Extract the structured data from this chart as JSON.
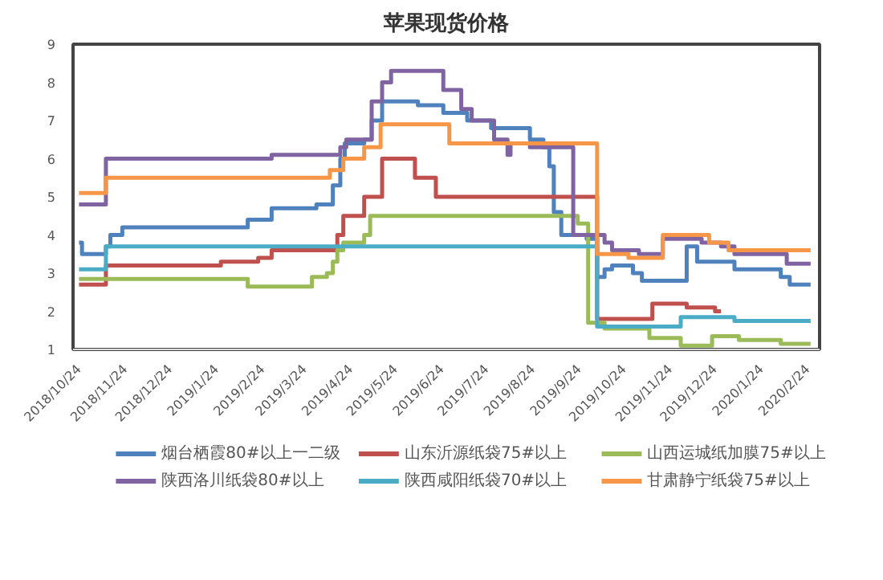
{
  "chart_data": {
    "type": "step",
    "title": "苹果现货价格",
    "xlim": [
      "2018-10-20",
      "2020-03-03"
    ],
    "ylim": [
      1,
      9
    ],
    "yticks": [
      1,
      2,
      3,
      4,
      5,
      6,
      7,
      8,
      9
    ],
    "xticks": [
      {
        "value": "2018-10-24",
        "label": "2018/10/24"
      },
      {
        "value": "2018-11-24",
        "label": "2018/11/24"
      },
      {
        "value": "2018-12-24",
        "label": "2018/12/24"
      },
      {
        "value": "2019-01-24",
        "label": "2019/1/24"
      },
      {
        "value": "2019-02-24",
        "label": "2019/2/24"
      },
      {
        "value": "2019-03-24",
        "label": "2019/3/24"
      },
      {
        "value": "2019-04-24",
        "label": "2019/4/24"
      },
      {
        "value": "2019-05-24",
        "label": "2019/5/24"
      },
      {
        "value": "2019-06-24",
        "label": "2019/6/24"
      },
      {
        "value": "2019-07-24",
        "label": "2019/7/24"
      },
      {
        "value": "2019-08-24",
        "label": "2019/8/24"
      },
      {
        "value": "2019-09-24",
        "label": "2019/9/24"
      },
      {
        "value": "2019-10-24",
        "label": "2019/10/24"
      },
      {
        "value": "2019-11-24",
        "label": "2019/11/24"
      },
      {
        "value": "2019-12-24",
        "label": "2019/12/24"
      },
      {
        "value": "2020-01-24",
        "label": "2020/1/24"
      },
      {
        "value": "2020-02-24",
        "label": "2020/2/24"
      }
    ],
    "grid": false,
    "legend": "bottom",
    "series": [
      {
        "name": "烟台栖霞80#以上一二级",
        "color": "#4f81bd",
        "x": [
          "2018-10-24",
          "2018-10-26",
          "2018-11-11",
          "2018-11-14",
          "2018-11-22",
          "2019-02-14",
          "2019-03-02",
          "2019-04-01",
          "2019-04-12",
          "2019-04-17",
          "2019-04-20",
          "2019-05-03",
          "2019-05-08",
          "2019-05-15",
          "2019-06-08",
          "2019-06-25",
          "2019-07-11",
          "2019-07-27",
          "2019-08-22",
          "2019-08-31",
          "2019-09-04",
          "2019-09-07",
          "2019-09-12",
          "2019-09-29",
          "2019-10-06",
          "2019-10-11",
          "2019-10-16",
          "2019-10-30",
          "2019-11-05",
          "2019-12-05",
          "2019-12-12",
          "2020-01-06",
          "2020-02-06",
          "2020-02-12",
          "2020-02-26"
        ],
        "values": [
          3.8,
          3.5,
          3.7,
          4.0,
          4.2,
          4.4,
          4.7,
          4.8,
          5.3,
          6.0,
          6.4,
          6.5,
          7.0,
          7.5,
          7.4,
          7.2,
          7.0,
          6.8,
          6.5,
          6.3,
          5.8,
          4.6,
          4.0,
          3.9,
          2.9,
          3.1,
          3.2,
          3.0,
          2.8,
          3.7,
          3.3,
          3.1,
          2.9,
          2.7,
          2.7
        ]
      },
      {
        "name": "山东沂源纸袋75#以上",
        "color": "#c0504d",
        "x": [
          "2018-10-24",
          "2018-11-11",
          "2019-01-27",
          "2019-02-21",
          "2019-03-02",
          "2019-04-15",
          "2019-04-19",
          "2019-05-03",
          "2019-05-15",
          "2019-06-06",
          "2019-06-20",
          "2019-10-06",
          "2019-11-12",
          "2019-12-05",
          "2019-12-24",
          "2019-12-28"
        ],
        "values": [
          2.7,
          3.2,
          3.3,
          3.4,
          3.6,
          4.0,
          4.5,
          5.0,
          6.0,
          5.5,
          5.0,
          1.8,
          2.2,
          2.1,
          2.0,
          2.0
        ]
      },
      {
        "name": "山西运城纸加膜75#以上",
        "color": "#9bbb59",
        "x": [
          "2018-10-24",
          "2019-02-14",
          "2019-03-29",
          "2019-04-08",
          "2019-04-12",
          "2019-04-15",
          "2019-04-19",
          "2019-05-03",
          "2019-05-07",
          "2019-09-23",
          "2019-09-30",
          "2019-10-11",
          "2019-11-10",
          "2019-12-01",
          "2019-12-22",
          "2020-01-09",
          "2020-02-06",
          "2020-02-26"
        ],
        "values": [
          2.85,
          2.65,
          2.9,
          3.0,
          3.3,
          3.6,
          3.8,
          4.0,
          4.5,
          4.3,
          1.7,
          1.55,
          1.3,
          1.1,
          1.35,
          1.25,
          1.15,
          1.15
        ]
      },
      {
        "name": "陕西洛川纸袋80#以上",
        "color": "#8064a2",
        "x": [
          "2018-10-24",
          "2018-11-11",
          "2019-03-02",
          "2019-04-17",
          "2019-04-21",
          "2019-05-08",
          "2019-05-15",
          "2019-05-21",
          "2019-06-25",
          "2019-07-07",
          "2019-07-14",
          "2019-07-29",
          "2019-08-07",
          "2019-08-09",
          "2019-08-22",
          "2019-09-20",
          "2019-10-11",
          "2019-10-16",
          "2019-11-03",
          "2019-11-19",
          "2019-12-15",
          "2019-12-28",
          "2020-01-06",
          "2020-02-10",
          "2020-02-26"
        ],
        "values": [
          4.8,
          6.0,
          6.1,
          6.3,
          6.5,
          7.5,
          8.0,
          8.3,
          7.8,
          7.3,
          7.0,
          6.5,
          6.1,
          6.4,
          6.3,
          4.0,
          3.8,
          3.6,
          3.5,
          3.9,
          3.8,
          3.7,
          3.5,
          3.25,
          3.25
        ]
      },
      {
        "name": "陕西咸阳纸袋70#以上",
        "color": "#4bacc6",
        "x": [
          "2018-10-24",
          "2018-11-11",
          "2019-10-06",
          "2019-12-01",
          "2020-01-06",
          "2020-02-26"
        ],
        "values": [
          3.1,
          3.7,
          1.6,
          1.85,
          1.75,
          1.75
        ]
      },
      {
        "name": "甘肃静宁纸袋75#以上",
        "color": "#f79646",
        "x": [
          "2018-10-24",
          "2018-11-11",
          "2019-04-10",
          "2019-04-19",
          "2019-05-03",
          "2019-05-14",
          "2019-06-29",
          "2019-10-06",
          "2019-10-27",
          "2019-11-19",
          "2019-12-20",
          "2020-01-02",
          "2020-02-26"
        ],
        "values": [
          5.1,
          5.5,
          5.7,
          6.0,
          6.3,
          6.9,
          6.4,
          3.5,
          3.4,
          4.0,
          3.8,
          3.6,
          3.6
        ]
      }
    ]
  }
}
